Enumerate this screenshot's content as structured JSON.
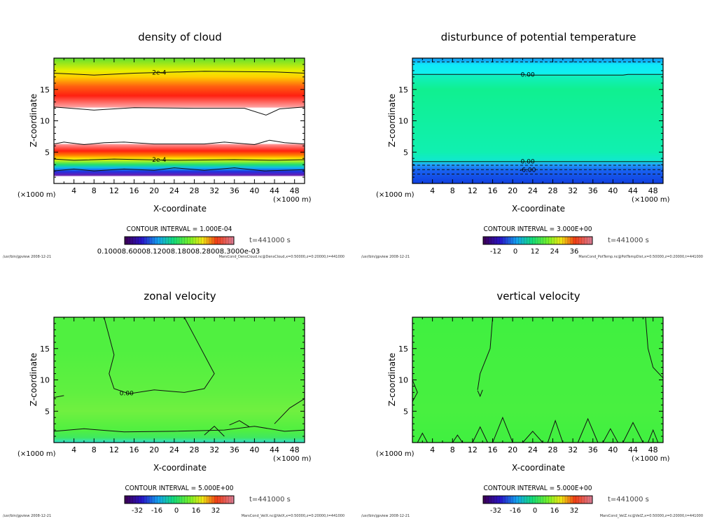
{
  "chart_data": [
    {
      "type": "heatmap",
      "title": "density of cloud",
      "xlabel": "X-coordinate",
      "ylabel": "Z-coordinate",
      "x_unit": "(×1000 m)",
      "xlim": [
        0,
        50
      ],
      "ylim": [
        0,
        20
      ],
      "xticks": [
        "4",
        "8",
        "12",
        "16",
        "20",
        "24",
        "28",
        "32",
        "36",
        "40",
        "44",
        "48"
      ],
      "yticks": [
        "5",
        "10",
        "15"
      ],
      "contour_interval": "CONTOUR INTERVAL = 1.000E-04",
      "contour_labels": [
        "2e-4",
        "2e-4"
      ],
      "time": "t=441000 s",
      "colorbar_labels": "0.10008.60008.12008.18008.28008.3000e-03",
      "footer_left": "/usr/bin/gpview   2008-12-21",
      "footer_right": "MarsCond_DensCloud.nc@DensCloud,x=0:50000,z=0:20000,t=441000"
    },
    {
      "type": "heatmap",
      "title": "disturbunce of potential temperature",
      "xlabel": "X-coordinate",
      "ylabel": "Z-coordinate",
      "x_unit": "(×1000 m)",
      "xlim": [
        0,
        50
      ],
      "ylim": [
        0,
        20
      ],
      "xticks": [
        "4",
        "8",
        "12",
        "16",
        "20",
        "24",
        "28",
        "32",
        "36",
        "40",
        "44",
        "48"
      ],
      "yticks": [
        "5",
        "10",
        "15"
      ],
      "contour_interval": "CONTOUR INTERVAL = 3.000E+00",
      "contour_labels": [
        "0.00",
        "0.00",
        "-6.00"
      ],
      "time": "t=441000 s",
      "colorbar_ticks": [
        "-12",
        "0",
        "12",
        "24",
        "36"
      ],
      "footer_left": "/usr/bin/gpview   2008-12-21",
      "footer_right": "MarsCond_PotTemp.nc@PotTempDist,x=0:50000,z=0:20000,t=441000"
    },
    {
      "type": "heatmap",
      "title": "zonal velocity",
      "xlabel": "X-coordinate",
      "ylabel": "Z-coordinate",
      "x_unit": "(×1000 m)",
      "xlim": [
        0,
        50
      ],
      "ylim": [
        0,
        20
      ],
      "xticks": [
        "4",
        "8",
        "12",
        "16",
        "20",
        "24",
        "28",
        "32",
        "36",
        "40",
        "44",
        "48"
      ],
      "yticks": [
        "5",
        "10",
        "15"
      ],
      "contour_interval": "CONTOUR INTERVAL = 5.000E+00",
      "contour_labels": [
        "0.00"
      ],
      "time": "t=441000 s",
      "colorbar_ticks": [
        "-32",
        "-16",
        "0",
        "16",
        "32"
      ],
      "footer_left": "/usr/bin/gpview   2008-12-21",
      "footer_right": "MarsCond_VelX.nc@VelX,x=0:50000,z=0:20000,t=441000"
    },
    {
      "type": "heatmap",
      "title": "vertical velocity",
      "xlabel": "X-coordinate",
      "ylabel": "Z-coordinate",
      "x_unit": "(×1000 m)",
      "xlim": [
        0,
        50
      ],
      "ylim": [
        0,
        20
      ],
      "xticks": [
        "4",
        "8",
        "12",
        "16",
        "20",
        "24",
        "28",
        "32",
        "36",
        "40",
        "44",
        "48"
      ],
      "yticks": [
        "5",
        "10",
        "15"
      ],
      "contour_interval": "CONTOUR INTERVAL = 5.000E+00",
      "contour_labels": [],
      "time": "t=441000 s",
      "colorbar_ticks": [
        "-32",
        "-16",
        "0",
        "16",
        "32"
      ],
      "footer_left": "/usr/bin/gpview   2008-12-21",
      "footer_right": "MarsCond_VelZ.nc@VelZ,x=0:50000,z=0:20000,t=441000"
    }
  ]
}
